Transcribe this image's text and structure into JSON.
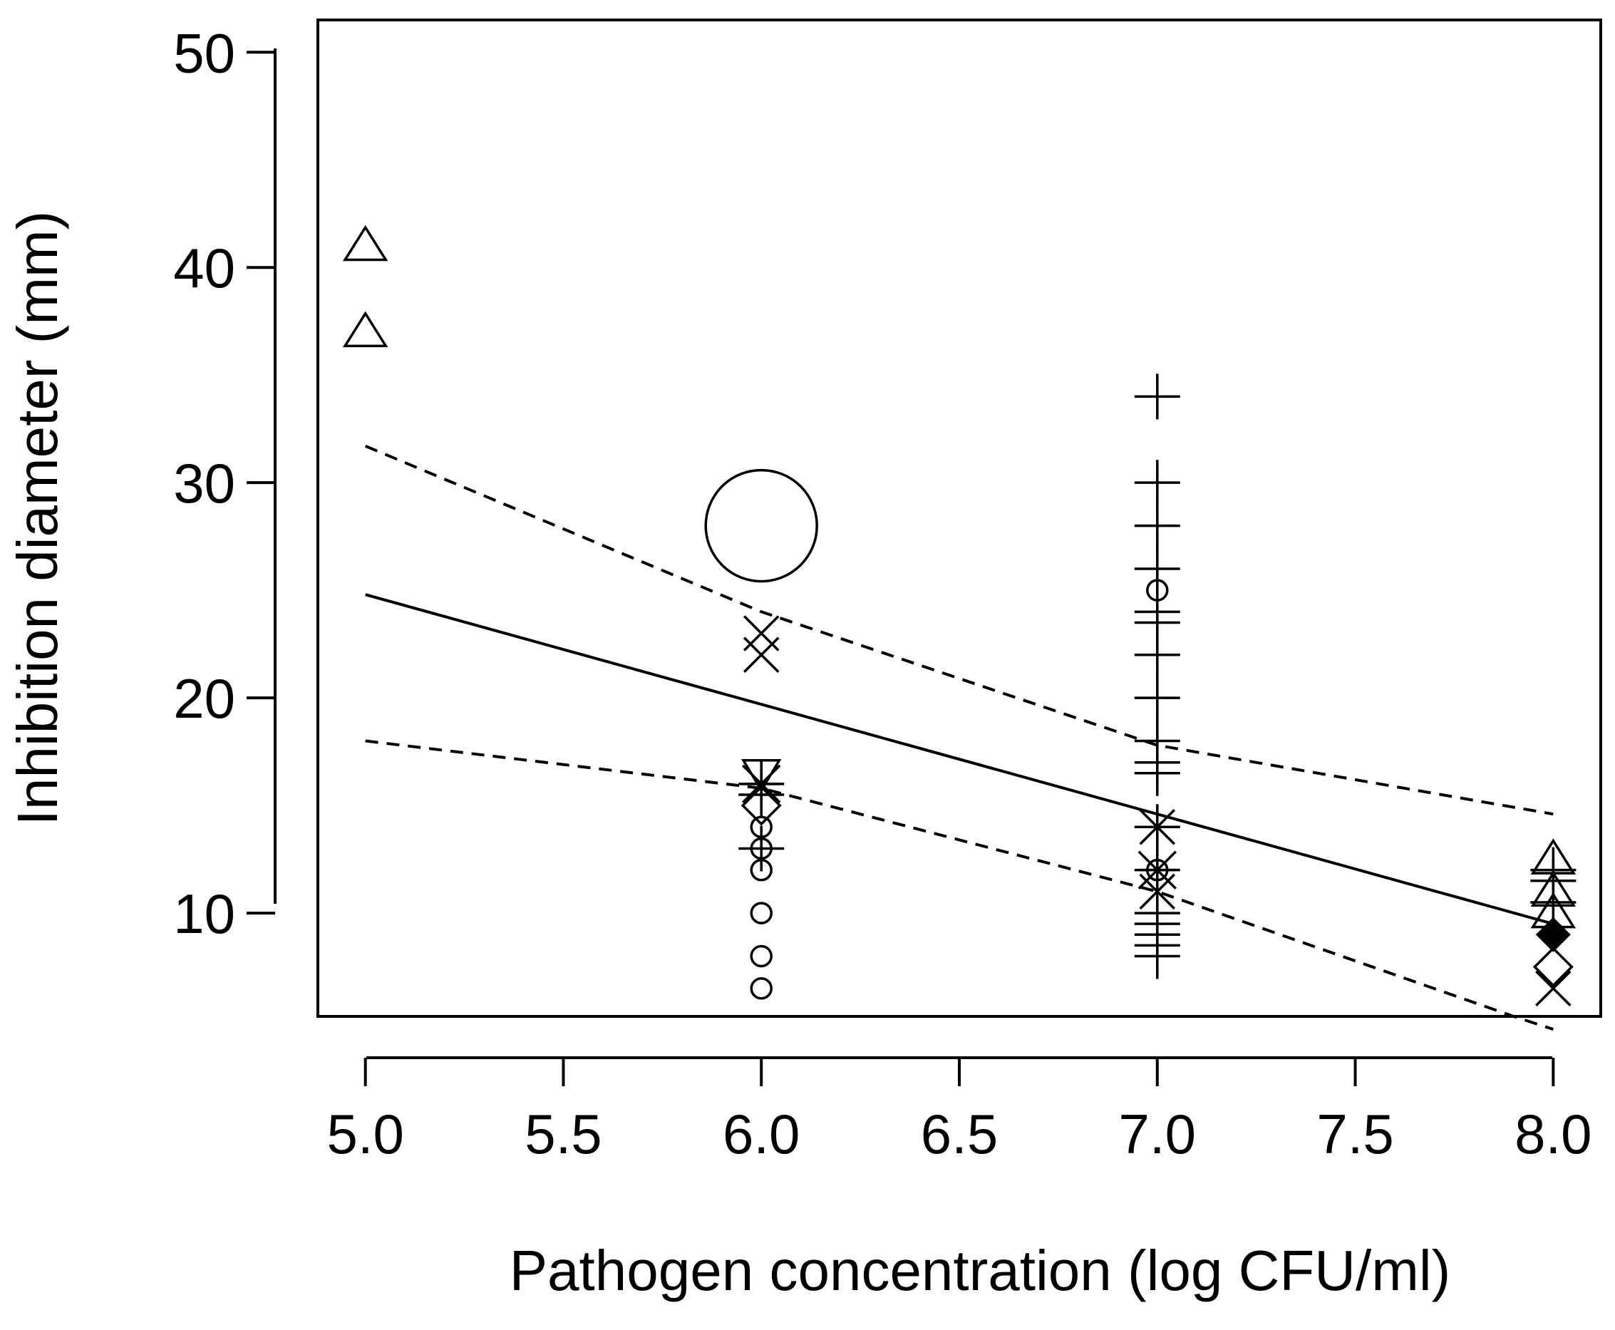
{
  "chart_data": {
    "type": "scatter",
    "title": "",
    "xlabel": "Pathogen concentration (log CFU/ml)",
    "ylabel": "Inhibition diameter (mm)",
    "xlim": [
      4.88,
      8.12
    ],
    "ylim": [
      5.2,
      51.5
    ],
    "xticks": [
      "5.0",
      "5.5",
      "6.0",
      "6.5",
      "7.0",
      "7.5",
      "8.0"
    ],
    "yticks": [
      "10",
      "20",
      "30",
      "40",
      "50"
    ],
    "grid": false,
    "colors": {
      "ink": "#000000",
      "background": "#ffffff"
    },
    "series": [
      {
        "name": "triangle",
        "marker": "triangle-up",
        "points": [
          {
            "x": 5.0,
            "y": 41.0
          },
          {
            "x": 5.0,
            "y": 37.0
          },
          {
            "x": 8.0,
            "y": 12.5
          },
          {
            "x": 8.0,
            "y": 11.0
          },
          {
            "x": 8.0,
            "y": 10.0
          }
        ]
      },
      {
        "name": "large circle",
        "marker": "circle-large",
        "points": [
          {
            "x": 6.0,
            "y": 28.0
          }
        ]
      },
      {
        "name": "small circle",
        "marker": "circle",
        "points": [
          {
            "x": 6.0,
            "y": 14.0
          },
          {
            "x": 6.0,
            "y": 13.0
          },
          {
            "x": 6.0,
            "y": 12.0
          },
          {
            "x": 6.0,
            "y": 10.0
          },
          {
            "x": 6.0,
            "y": 8.0
          },
          {
            "x": 6.0,
            "y": 6.5
          },
          {
            "x": 7.0,
            "y": 25.0
          },
          {
            "x": 7.0,
            "y": 12.0
          }
        ]
      },
      {
        "name": "cross",
        "marker": "x",
        "points": [
          {
            "x": 6.0,
            "y": 23.0
          },
          {
            "x": 6.0,
            "y": 22.0
          },
          {
            "x": 7.0,
            "y": 14.0
          },
          {
            "x": 7.0,
            "y": 11.0
          },
          {
            "x": 8.0,
            "y": 6.5
          }
        ]
      },
      {
        "name": "plus",
        "marker": "plus",
        "points": [
          {
            "x": 6.0,
            "y": 16.0
          },
          {
            "x": 6.0,
            "y": 15.5
          },
          {
            "x": 6.0,
            "y": 13.0
          },
          {
            "x": 7.0,
            "y": 34.0
          },
          {
            "x": 7.0,
            "y": 30.0
          },
          {
            "x": 7.0,
            "y": 28.0
          },
          {
            "x": 7.0,
            "y": 26.0
          },
          {
            "x": 7.0,
            "y": 24.0
          },
          {
            "x": 7.0,
            "y": 23.5
          },
          {
            "x": 7.0,
            "y": 22.0
          },
          {
            "x": 7.0,
            "y": 20.0
          },
          {
            "x": 7.0,
            "y": 18.0
          },
          {
            "x": 7.0,
            "y": 17.0
          },
          {
            "x": 7.0,
            "y": 16.5
          },
          {
            "x": 7.0,
            "y": 14.0
          },
          {
            "x": 7.0,
            "y": 12.0
          },
          {
            "x": 7.0,
            "y": 10.0
          },
          {
            "x": 7.0,
            "y": 9.5
          },
          {
            "x": 7.0,
            "y": 9.0
          },
          {
            "x": 7.0,
            "y": 8.5
          },
          {
            "x": 7.0,
            "y": 8.0
          },
          {
            "x": 8.0,
            "y": 12.0
          },
          {
            "x": 8.0,
            "y": 11.5
          },
          {
            "x": 8.0,
            "y": 10.5
          }
        ]
      },
      {
        "name": "asterisk",
        "marker": "asterisk",
        "points": [
          {
            "x": 6.0,
            "y": 16.0
          },
          {
            "x": 7.0,
            "y": 12.0
          }
        ]
      },
      {
        "name": "inverted triangle",
        "marker": "triangle-down",
        "points": [
          {
            "x": 6.0,
            "y": 16.5
          }
        ]
      },
      {
        "name": "diamond",
        "marker": "diamond",
        "points": [
          {
            "x": 6.0,
            "y": 15.0
          },
          {
            "x": 8.0,
            "y": 7.5
          }
        ]
      },
      {
        "name": "filled diamond",
        "marker": "diamond-filled",
        "points": [
          {
            "x": 8.0,
            "y": 9.0
          }
        ]
      }
    ],
    "lines": [
      {
        "name": "regression fit",
        "style": "solid",
        "x": [
          5.0,
          8.0
        ],
        "y": [
          24.8,
          9.5
        ]
      },
      {
        "name": "upper band",
        "style": "dashed",
        "x": [
          5.0,
          6.0,
          7.0,
          8.0
        ],
        "y": [
          31.7,
          24.0,
          17.8,
          14.6
        ]
      },
      {
        "name": "lower band",
        "style": "dashed",
        "x": [
          5.0,
          6.0,
          7.0,
          7.9,
          8.0
        ],
        "y": [
          18.0,
          15.8,
          11.0,
          5.2,
          4.6
        ]
      }
    ]
  }
}
